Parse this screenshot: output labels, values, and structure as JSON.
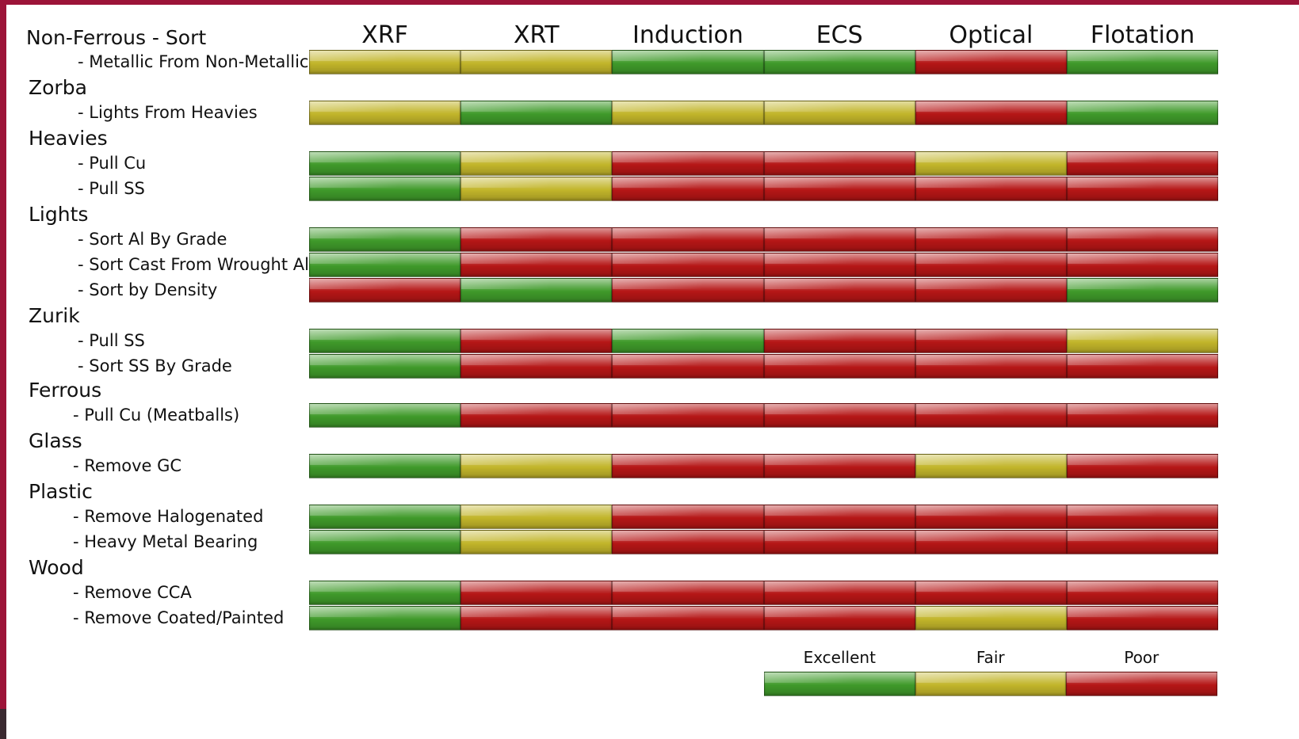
{
  "chart_data": {
    "type": "table",
    "title": "Non-Ferrous - Sort",
    "columns": [
      "XRF",
      "XRT",
      "Induction",
      "ECS",
      "Optical",
      "Flotation"
    ],
    "rating_levels": [
      "Excellent",
      "Fair",
      "Poor"
    ],
    "colors": {
      "Excellent": "#3f9a2a",
      "Fair": "#c2b52a",
      "Poor": "#b51616"
    },
    "rows": [
      {
        "group": "",
        "label": "- Metallic From Non-Metallic",
        "ratings": [
          "Fair",
          "Fair",
          "Excellent",
          "Excellent",
          "Poor",
          "Excellent"
        ]
      },
      {
        "group": "Zorba",
        "label": "- Lights From Heavies",
        "ratings": [
          "Fair",
          "Excellent",
          "Fair",
          "Fair",
          "Poor",
          "Excellent"
        ]
      },
      {
        "group": "Heavies",
        "label": "- Pull Cu",
        "ratings": [
          "Excellent",
          "Fair",
          "Poor",
          "Poor",
          "Fair",
          "Poor"
        ]
      },
      {
        "group": "",
        "label": "- Pull SS",
        "ratings": [
          "Excellent",
          "Fair",
          "Poor",
          "Poor",
          "Poor",
          "Poor"
        ]
      },
      {
        "group": "Lights",
        "label": "- Sort Al By Grade",
        "ratings": [
          "Excellent",
          "Poor",
          "Poor",
          "Poor",
          "Poor",
          "Poor"
        ]
      },
      {
        "group": "",
        "label": "- Sort Cast From Wrought Al",
        "ratings": [
          "Excellent",
          "Poor",
          "Poor",
          "Poor",
          "Poor",
          "Poor"
        ]
      },
      {
        "group": "",
        "label": "- Sort by Density",
        "ratings": [
          "Poor",
          "Excellent",
          "Poor",
          "Poor",
          "Poor",
          "Excellent"
        ]
      },
      {
        "group": "Zurik",
        "label": "- Pull SS",
        "ratings": [
          "Excellent",
          "Poor",
          "Excellent",
          "Poor",
          "Poor",
          "Fair"
        ]
      },
      {
        "group": "",
        "label": "- Sort SS By Grade",
        "ratings": [
          "Excellent",
          "Poor",
          "Poor",
          "Poor",
          "Poor",
          "Poor"
        ]
      },
      {
        "group": "Ferrous",
        "label": "- Pull Cu (Meatballs)",
        "ratings": [
          "Excellent",
          "Poor",
          "Poor",
          "Poor",
          "Poor",
          "Poor"
        ]
      },
      {
        "group": "Glass",
        "label": "- Remove GC",
        "ratings": [
          "Excellent",
          "Fair",
          "Poor",
          "Poor",
          "Fair",
          "Poor"
        ]
      },
      {
        "group": "Plastic",
        "label": "- Remove Halogenated",
        "ratings": [
          "Excellent",
          "Fair",
          "Poor",
          "Poor",
          "Poor",
          "Poor"
        ]
      },
      {
        "group": "",
        "label": "- Heavy Metal Bearing",
        "ratings": [
          "Excellent",
          "Fair",
          "Poor",
          "Poor",
          "Poor",
          "Poor"
        ]
      },
      {
        "group": "Wood",
        "label": "- Remove CCA",
        "ratings": [
          "Excellent",
          "Poor",
          "Poor",
          "Poor",
          "Poor",
          "Poor"
        ]
      },
      {
        "group": "",
        "label": "- Remove Coated/Painted",
        "ratings": [
          "Excellent",
          "Poor",
          "Poor",
          "Poor",
          "Fair",
          "Poor"
        ]
      }
    ],
    "legend": [
      "Excellent",
      "Fair",
      "Poor"
    ]
  }
}
